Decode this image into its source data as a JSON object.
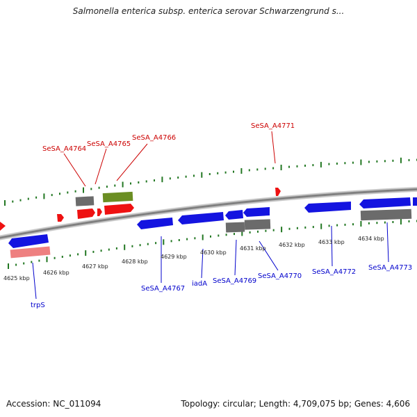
{
  "title": "Salmonella enterica subsp. enterica serovar Schwarzengrund s...",
  "footer": {
    "accession": "Accession: NC_011094",
    "summary": "Topology: circular; Length: 4,709,075 bp; Genes: 4,606"
  },
  "colors": {
    "backbone": "#8a8a8a",
    "forward_gene": "#ee1111",
    "reverse_gene": "#1414e0",
    "pseudo_gene": "#6b6b6b",
    "rna_gene": "#6b8e23",
    "pink_gene": "#ee8080",
    "tick": "#227722",
    "forward_label": "#cc0000",
    "reverse_label": "#0000cc"
  },
  "scale_ticks": [
    {
      "label": "4625 kbp",
      "kbp": 4625
    },
    {
      "label": "4626 kbp",
      "kbp": 4626
    },
    {
      "label": "4627 kbp",
      "kbp": 4627
    },
    {
      "label": "4628 kbp",
      "kbp": 4628
    },
    {
      "label": "4629 kbp",
      "kbp": 4629
    },
    {
      "label": "4630 kbp",
      "kbp": 4630
    },
    {
      "label": "4631 kbp",
      "kbp": 4631
    },
    {
      "label": "4632 kbp",
      "kbp": 4632
    },
    {
      "label": "4633 kbp",
      "kbp": 4633
    },
    {
      "label": "4634 kbp",
      "kbp": 4634
    }
  ],
  "forward_labels": [
    "SeSA_A4764",
    "SeSA_A4765",
    "SeSA_A4766",
    "SeSA_A4771"
  ],
  "reverse_labels": [
    "trpS",
    "SeSA_A4767",
    "iadA",
    "SeSA_A4769",
    "SeSA_A4770",
    "SeSA_A4772",
    "SeSA_A4773"
  ]
}
